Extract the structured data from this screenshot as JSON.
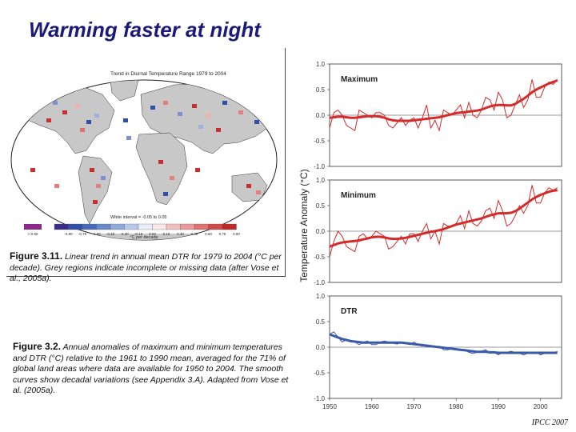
{
  "slide": {
    "title": "Warming faster at night",
    "credit": "IPCC 2007"
  },
  "map_figure": {
    "title": "Trend in Diurnal Temperature Range 1979 to 2004",
    "white_interval": "White interval = -0.05 to 0.05",
    "legend_ticks": [
      "<-0.90",
      "-0.90",
      "-0.75",
      "-0.60",
      "-0.45",
      "-0.30",
      "-0.15",
      "0.00",
      "0.15",
      "0.30",
      "0.45",
      "0.60",
      "0.75",
      "0.90"
    ],
    "unit": "°C per decade",
    "colors": {
      "land": "#c8c8c8",
      "ocean": "#ffffff",
      "cool": "#3050a8",
      "warm": "#c82828",
      "purple": "#8a2a8a"
    },
    "caption_label": "Figure 3.11.",
    "caption_text": "Linear trend in annual mean DTR for 1979 to 2004 (°C per decade). Grey regions indicate incomplete or missing data (after Vose et al., 2005a)."
  },
  "series_figure": {
    "caption_label": "Figure 3.2.",
    "caption_text": "Annual anomalies of maximum and minimum temperatures and DTR (°C) relative to the 1961 to 1990 mean, averaged for the 71% of global land areas where data are available for 1950 to 2004. The smooth curves show decadal variations (see Appendix 3.A). Adapted from Vose et al. (2005a)."
  },
  "chart_data": {
    "type": "line",
    "ylabel": "Temperature Anomaly (°C)",
    "xticks": [
      "1950",
      "1960",
      "1970",
      "1980",
      "1990",
      "2000"
    ],
    "x_range": [
      1950,
      2005
    ],
    "yticks": [
      "1.0",
      "0.5",
      "0.0",
      "-0.5",
      "-1.0"
    ],
    "ylim": [
      -1.0,
      1.0
    ],
    "panels": [
      {
        "name": "Maximum",
        "color": "#d42a2a",
        "years": [
          1950,
          1951,
          1952,
          1953,
          1954,
          1955,
          1956,
          1957,
          1958,
          1959,
          1960,
          1961,
          1962,
          1963,
          1964,
          1965,
          1966,
          1967,
          1968,
          1969,
          1970,
          1971,
          1972,
          1973,
          1974,
          1975,
          1976,
          1977,
          1978,
          1979,
          1980,
          1981,
          1982,
          1983,
          1984,
          1985,
          1986,
          1987,
          1988,
          1989,
          1990,
          1991,
          1992,
          1993,
          1994,
          1995,
          1996,
          1997,
          1998,
          1999,
          2000,
          2001,
          2002,
          2003,
          2004
        ],
        "annual": [
          -0.25,
          0.05,
          0.1,
          0.0,
          -0.2,
          -0.25,
          -0.3,
          0.1,
          0.05,
          0.0,
          -0.05,
          0.05,
          0.05,
          0.0,
          -0.2,
          -0.25,
          -0.15,
          -0.05,
          -0.2,
          -0.1,
          -0.05,
          -0.25,
          -0.05,
          0.2,
          -0.25,
          -0.1,
          -0.3,
          0.1,
          0.05,
          0.0,
          0.1,
          0.2,
          -0.05,
          0.25,
          0.0,
          -0.05,
          0.1,
          0.35,
          0.3,
          0.1,
          0.45,
          0.3,
          -0.05,
          0.0,
          0.2,
          0.4,
          0.15,
          0.3,
          0.7,
          0.35,
          0.35,
          0.55,
          0.65,
          0.6,
          0.7
        ],
        "smooth": [
          -0.05,
          -0.04,
          -0.03,
          -0.03,
          -0.04,
          -0.05,
          -0.05,
          -0.04,
          -0.03,
          -0.02,
          -0.02,
          -0.02,
          -0.03,
          -0.05,
          -0.08,
          -0.1,
          -0.11,
          -0.11,
          -0.11,
          -0.11,
          -0.1,
          -0.09,
          -0.08,
          -0.07,
          -0.06,
          -0.05,
          -0.04,
          -0.02,
          0.0,
          0.02,
          0.04,
          0.05,
          0.06,
          0.07,
          0.08,
          0.09,
          0.11,
          0.14,
          0.17,
          0.19,
          0.2,
          0.2,
          0.19,
          0.19,
          0.22,
          0.27,
          0.32,
          0.38,
          0.45,
          0.5,
          0.54,
          0.58,
          0.62,
          0.65,
          0.68
        ]
      },
      {
        "name": "Minimum",
        "color": "#d42a2a",
        "years": [
          1950,
          1951,
          1952,
          1953,
          1954,
          1955,
          1956,
          1957,
          1958,
          1959,
          1960,
          1961,
          1962,
          1963,
          1964,
          1965,
          1966,
          1967,
          1968,
          1969,
          1970,
          1971,
          1972,
          1973,
          1974,
          1975,
          1976,
          1977,
          1978,
          1979,
          1980,
          1981,
          1982,
          1983,
          1984,
          1985,
          1986,
          1987,
          1988,
          1989,
          1990,
          1991,
          1992,
          1993,
          1994,
          1995,
          1996,
          1997,
          1998,
          1999,
          2000,
          2001,
          2002,
          2003,
          2004
        ],
        "annual": [
          -0.5,
          -0.2,
          0.0,
          -0.1,
          -0.3,
          -0.35,
          -0.4,
          -0.1,
          -0.05,
          -0.15,
          -0.1,
          0.0,
          -0.05,
          -0.1,
          -0.35,
          -0.3,
          -0.2,
          -0.1,
          -0.25,
          -0.05,
          -0.05,
          -0.2,
          0.0,
          0.15,
          -0.15,
          0.0,
          -0.25,
          0.15,
          0.1,
          0.1,
          0.15,
          0.3,
          0.05,
          0.4,
          0.15,
          0.1,
          0.2,
          0.4,
          0.45,
          0.25,
          0.6,
          0.4,
          0.1,
          0.15,
          0.3,
          0.5,
          0.35,
          0.5,
          0.9,
          0.55,
          0.55,
          0.75,
          0.85,
          0.8,
          0.85
        ],
        "smooth": [
          -0.3,
          -0.27,
          -0.24,
          -0.22,
          -0.21,
          -0.2,
          -0.19,
          -0.18,
          -0.16,
          -0.14,
          -0.12,
          -0.11,
          -0.11,
          -0.12,
          -0.14,
          -0.15,
          -0.15,
          -0.14,
          -0.13,
          -0.11,
          -0.09,
          -0.07,
          -0.05,
          -0.03,
          -0.01,
          0.0,
          0.02,
          0.04,
          0.07,
          0.1,
          0.13,
          0.15,
          0.17,
          0.19,
          0.21,
          0.23,
          0.25,
          0.28,
          0.31,
          0.33,
          0.35,
          0.35,
          0.35,
          0.36,
          0.39,
          0.44,
          0.5,
          0.56,
          0.62,
          0.67,
          0.71,
          0.74,
          0.77,
          0.79,
          0.8
        ]
      },
      {
        "name": "DTR",
        "color": "#3a5aa8",
        "years": [
          1950,
          1951,
          1952,
          1953,
          1954,
          1955,
          1956,
          1957,
          1958,
          1959,
          1960,
          1961,
          1962,
          1963,
          1964,
          1965,
          1966,
          1967,
          1968,
          1969,
          1970,
          1971,
          1972,
          1973,
          1974,
          1975,
          1976,
          1977,
          1978,
          1979,
          1980,
          1981,
          1982,
          1983,
          1984,
          1985,
          1986,
          1987,
          1988,
          1989,
          1990,
          1991,
          1992,
          1993,
          1994,
          1995,
          1996,
          1997,
          1998,
          1999,
          2000,
          2001,
          2002,
          2003,
          2004
        ],
        "annual": [
          0.25,
          0.3,
          0.2,
          0.1,
          0.15,
          0.1,
          0.1,
          0.05,
          0.1,
          0.12,
          0.05,
          0.05,
          0.1,
          0.12,
          0.1,
          0.08,
          0.06,
          0.1,
          0.08,
          0.05,
          0.1,
          0.05,
          0.02,
          0.05,
          0.0,
          0.0,
          0.02,
          -0.05,
          -0.05,
          -0.03,
          -0.03,
          -0.05,
          -0.05,
          -0.1,
          -0.12,
          -0.1,
          -0.08,
          -0.05,
          -0.12,
          -0.1,
          -0.15,
          -0.1,
          -0.1,
          -0.08,
          -0.1,
          -0.12,
          -0.15,
          -0.12,
          -0.12,
          -0.1,
          -0.15,
          -0.12,
          -0.1,
          -0.12,
          -0.08
        ],
        "smooth": [
          0.25,
          0.22,
          0.19,
          0.16,
          0.14,
          0.12,
          0.11,
          0.1,
          0.09,
          0.09,
          0.09,
          0.09,
          0.09,
          0.09,
          0.09,
          0.09,
          0.09,
          0.09,
          0.08,
          0.07,
          0.06,
          0.05,
          0.04,
          0.03,
          0.02,
          0.01,
          0.0,
          -0.01,
          -0.02,
          -0.03,
          -0.04,
          -0.05,
          -0.06,
          -0.07,
          -0.08,
          -0.09,
          -0.09,
          -0.09,
          -0.1,
          -0.1,
          -0.11,
          -0.11,
          -0.11,
          -0.11,
          -0.11,
          -0.11,
          -0.11,
          -0.11,
          -0.11,
          -0.11,
          -0.11,
          -0.11,
          -0.11,
          -0.11,
          -0.11
        ]
      }
    ]
  }
}
